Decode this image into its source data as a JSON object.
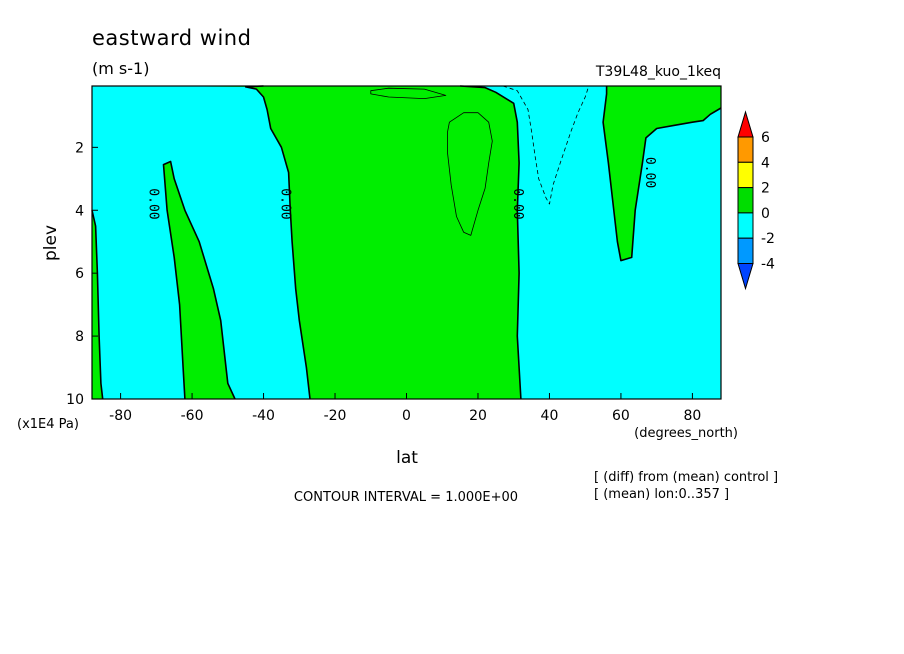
{
  "chart_data": {
    "type": "contour",
    "title": "eastward wind",
    "units": "(m s-1)",
    "experiment": "T39L48_kuo_1keq",
    "xlabel": "lat",
    "xunits": "(degrees_north)",
    "ylabel": "plev",
    "yunits": "(x1E4 Pa)",
    "xlim": [
      -88,
      88
    ],
    "ylim": [
      10,
      0.05
    ],
    "xticks": [
      -80,
      -60,
      -40,
      -20,
      0,
      20,
      40,
      60,
      80
    ],
    "yticks": [
      2,
      4,
      6,
      8,
      10
    ],
    "contour_interval_text": "CONTOUR INTERVAL = 1.000E+00",
    "notes": [
      "[ (diff) from (mean) control ]",
      "[ (mean) lon:0..357 ]"
    ],
    "contour_labels": [
      {
        "text": "0.00",
        "lat": -71,
        "plev": 3.8
      },
      {
        "text": "0.00",
        "lat": -34,
        "plev": 3.8
      },
      {
        "text": "0.00",
        "lat": 31,
        "plev": 3.8
      },
      {
        "text": "0.00",
        "lat": 68,
        "plev": 2.8
      }
    ],
    "legend": {
      "levels": [
        "6",
        "4",
        "2",
        "0",
        "-2",
        "-4"
      ],
      "colors": [
        "#ff0000",
        "#ff9900",
        "#ffff00",
        "#00dd00",
        "#00ffff",
        "#0099ff",
        "#0044ff"
      ]
    },
    "background_color": "#00ffff",
    "positive_color": "#00ee00",
    "regions": [
      {
        "name": "region-far-sh",
        "fill": "#00ee00",
        "points": [
          [
            -88,
            4.0
          ],
          [
            -87,
            4.5
          ],
          [
            -86.5,
            6.0
          ],
          [
            -86,
            8.0
          ],
          [
            -85.5,
            9.5
          ],
          [
            -85,
            10.0
          ],
          [
            -88,
            10.0
          ]
        ]
      },
      {
        "name": "region-sh-band",
        "fill": "#00ee00",
        "points": [
          [
            -68,
            2.55
          ],
          [
            -66,
            2.45
          ],
          [
            -65,
            3.0
          ],
          [
            -62,
            4.0
          ],
          [
            -58,
            5.0
          ],
          [
            -54,
            6.5
          ],
          [
            -52,
            7.5
          ],
          [
            -50,
            9.5
          ],
          [
            -48,
            10.0
          ],
          [
            -62,
            10.0
          ],
          [
            -62.5,
            9.0
          ],
          [
            -63.5,
            7.0
          ],
          [
            -65,
            5.5
          ],
          [
            -67,
            4.0
          ]
        ]
      },
      {
        "name": "region-central",
        "fill": "#00ee00",
        "points": [
          [
            -65,
            0.06
          ],
          [
            -45,
            0.08
          ],
          [
            -42,
            0.15
          ],
          [
            -40,
            0.4
          ],
          [
            -39,
            0.8
          ],
          [
            -38,
            1.4
          ],
          [
            -35,
            2.0
          ],
          [
            -33,
            2.8
          ],
          [
            -32.5,
            4.0
          ],
          [
            -32,
            5.0
          ],
          [
            -31,
            6.5
          ],
          [
            -30,
            7.5
          ],
          [
            -28,
            9.0
          ],
          [
            -27,
            10.0
          ],
          [
            32,
            10.0
          ],
          [
            31,
            8.0
          ],
          [
            31.5,
            6.0
          ],
          [
            31,
            4.0
          ],
          [
            31.5,
            2.5
          ],
          [
            31,
            1.2
          ],
          [
            30,
            0.6
          ],
          [
            25,
            0.25
          ],
          [
            22,
            0.1
          ],
          [
            15,
            0.05
          ],
          [
            -40,
            0.05
          ]
        ]
      },
      {
        "name": "region-nh-high",
        "fill": "#00ee00",
        "points": [
          [
            56,
            0.05
          ],
          [
            56,
            0.3
          ],
          [
            55,
            1.2
          ],
          [
            56.5,
            2.5
          ],
          [
            58,
            4.0
          ],
          [
            59,
            5.0
          ],
          [
            60,
            5.6
          ],
          [
            63,
            5.5
          ],
          [
            64,
            4.0
          ],
          [
            66,
            2.5
          ],
          [
            67,
            1.7
          ],
          [
            70,
            1.4
          ],
          [
            75,
            1.3
          ],
          [
            80,
            1.2
          ],
          [
            83,
            1.15
          ],
          [
            85,
            0.95
          ],
          [
            88,
            0.75
          ],
          [
            88,
            0.05
          ]
        ]
      }
    ],
    "contours": [
      {
        "name": "contour-far-sh",
        "dashed": false,
        "bold": true,
        "points": [
          [
            -88,
            4.0
          ],
          [
            -87,
            4.5
          ],
          [
            -86.5,
            6.0
          ],
          [
            -86,
            8.0
          ],
          [
            -85.5,
            9.5
          ],
          [
            -85,
            10.0
          ]
        ]
      },
      {
        "name": "contour-sh-band",
        "dashed": false,
        "bold": true,
        "closed": false,
        "points": [
          [
            -62,
            10.0
          ],
          [
            -62.5,
            9.0
          ],
          [
            -63.5,
            7.0
          ],
          [
            -65,
            5.5
          ],
          [
            -67,
            4.0
          ],
          [
            -68,
            2.55
          ],
          [
            -66,
            2.45
          ],
          [
            -65,
            3.0
          ],
          [
            -62,
            4.0
          ],
          [
            -58,
            5.0
          ],
          [
            -54,
            6.5
          ],
          [
            -52,
            7.5
          ],
          [
            -50,
            9.5
          ],
          [
            -48,
            10.0
          ]
        ]
      },
      {
        "name": "contour-central-west",
        "dashed": false,
        "bold": true,
        "points": [
          [
            -40,
            0.05
          ],
          [
            -45,
            0.08
          ],
          [
            -42,
            0.15
          ],
          [
            -40,
            0.4
          ],
          [
            -39,
            0.8
          ],
          [
            -38,
            1.4
          ],
          [
            -35,
            2.0
          ],
          [
            -33,
            2.8
          ],
          [
            -32.5,
            4.0
          ],
          [
            -32,
            5.0
          ],
          [
            -31,
            6.5
          ],
          [
            -30,
            7.5
          ],
          [
            -28,
            9.0
          ],
          [
            -27,
            10.0
          ]
        ]
      },
      {
        "name": "contour-central-east",
        "dashed": false,
        "bold": true,
        "points": [
          [
            15,
            0.05
          ],
          [
            22,
            0.1
          ],
          [
            25,
            0.25
          ],
          [
            30,
            0.6
          ],
          [
            31,
            1.2
          ],
          [
            31.5,
            2.5
          ],
          [
            31,
            4.0
          ],
          [
            31.5,
            6.0
          ],
          [
            31,
            8.0
          ],
          [
            32,
            10.0
          ]
        ]
      },
      {
        "name": "contour-nh-high",
        "dashed": false,
        "bold": true,
        "points": [
          [
            56,
            0.05
          ],
          [
            56,
            0.3
          ],
          [
            55,
            1.2
          ],
          [
            56.5,
            2.5
          ],
          [
            58,
            4.0
          ],
          [
            59,
            5.0
          ],
          [
            60,
            5.6
          ],
          [
            63,
            5.5
          ],
          [
            64,
            4.0
          ],
          [
            66,
            2.5
          ],
          [
            67,
            1.7
          ],
          [
            70,
            1.4
          ],
          [
            75,
            1.3
          ],
          [
            80,
            1.2
          ],
          [
            83,
            1.15
          ],
          [
            85,
            0.95
          ],
          [
            88,
            0.75
          ]
        ]
      },
      {
        "name": "contour-inner-top",
        "dashed": false,
        "bold": false,
        "closed": true,
        "points": [
          [
            -10,
            0.2
          ],
          [
            -5,
            0.12
          ],
          [
            5,
            0.15
          ],
          [
            11,
            0.35
          ],
          [
            5,
            0.45
          ],
          [
            -5,
            0.4
          ],
          [
            -10,
            0.3
          ]
        ]
      },
      {
        "name": "contour-inner-closed",
        "dashed": false,
        "bold": false,
        "closed": true,
        "points": [
          [
            12,
            1.2
          ],
          [
            16,
            0.9
          ],
          [
            20,
            0.9
          ],
          [
            23,
            1.2
          ],
          [
            24,
            1.8
          ],
          [
            23,
            2.5
          ],
          [
            22,
            3.3
          ],
          [
            20,
            4.0
          ],
          [
            18,
            4.8
          ],
          [
            16,
            4.7
          ],
          [
            14,
            4.2
          ],
          [
            12.5,
            3.2
          ],
          [
            11.5,
            2.2
          ],
          [
            11.5,
            1.5
          ]
        ]
      },
      {
        "name": "contour-negative-dashed",
        "dashed": true,
        "bold": false,
        "points": [
          [
            27,
            0.05
          ],
          [
            31,
            0.2
          ],
          [
            34,
            0.8
          ],
          [
            35,
            1.5
          ],
          [
            36,
            2.3
          ],
          [
            37,
            3.0
          ],
          [
            39,
            3.6
          ],
          [
            40,
            3.8
          ],
          [
            41,
            3.2
          ],
          [
            43,
            2.5
          ],
          [
            46,
            1.5
          ],
          [
            48,
            0.9
          ],
          [
            50,
            0.4
          ],
          [
            51,
            0.05
          ]
        ]
      }
    ]
  }
}
